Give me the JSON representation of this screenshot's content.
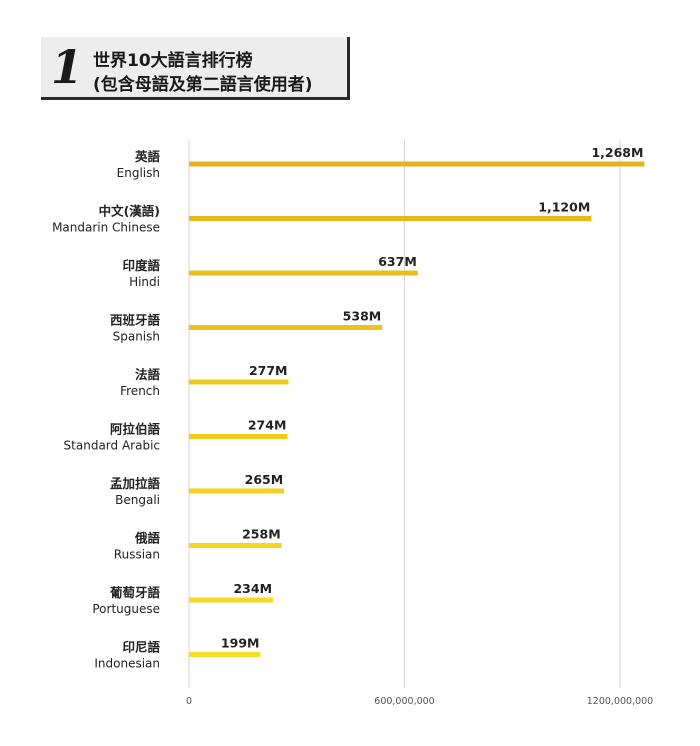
{
  "title": {
    "number": "1",
    "line1": "世界10大語言排行榜",
    "line2": "(包含母語及第二語言使用者)"
  },
  "chart_data": {
    "type": "bar",
    "orientation": "horizontal",
    "categories": [
      {
        "zh": "英語",
        "en": "English"
      },
      {
        "zh": "中文(漢語)",
        "en": "Mandarin Chinese"
      },
      {
        "zh": "印度語",
        "en": "Hindi"
      },
      {
        "zh": "西班牙語",
        "en": "Spanish"
      },
      {
        "zh": "法語",
        "en": "French"
      },
      {
        "zh": "阿拉伯語",
        "en": "Standard Arabic"
      },
      {
        "zh": "孟加拉語",
        "en": "Bengali"
      },
      {
        "zh": "俄語",
        "en": "Russian"
      },
      {
        "zh": "葡萄牙語",
        "en": "Portuguese"
      },
      {
        "zh": "印尼語",
        "en": "Indonesian"
      }
    ],
    "values": [
      1268000000,
      1120000000,
      637000000,
      538000000,
      277000000,
      274000000,
      265000000,
      258000000,
      234000000,
      199000000
    ],
    "value_labels": [
      "1,268M",
      "1,120M",
      "637M",
      "538M",
      "277M",
      "274M",
      "265M",
      "258M",
      "234M",
      "199M"
    ],
    "xlim": [
      0,
      1200000000
    ],
    "xticks": [
      0,
      600000000,
      1200000000
    ],
    "xtick_labels": [
      "0",
      "600,000,000",
      "1200,000,000"
    ],
    "grid": true,
    "colors": [
      "#e6b21e",
      "#e8b71d",
      "#eabd1c",
      "#ecc21b",
      "#eec81a",
      "#f0cc1a",
      "#f2d11a",
      "#f4d61c",
      "#f5da20",
      "#f6de26"
    ],
    "gridline_color": "#d6d6d6"
  }
}
